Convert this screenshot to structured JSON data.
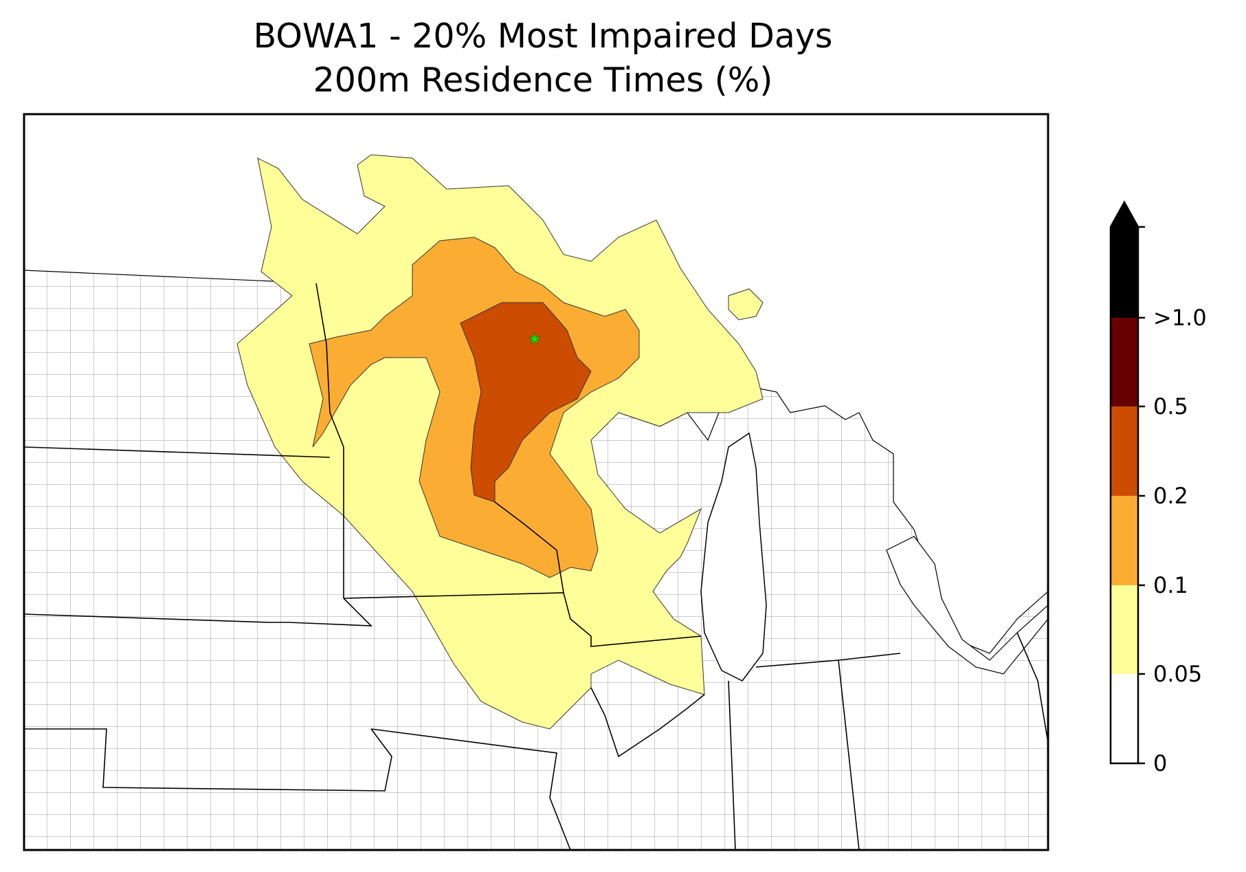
{
  "title": {
    "line1": "BOWA1 - 20% Most Impaired Days",
    "line2": "200m Residence Times (%)"
  },
  "colorbar": {
    "labels": [
      ">1.0",
      "0.5",
      "0.2",
      "0.1",
      "0.05",
      "0"
    ],
    "bins": [
      {
        "range": "0-0.05",
        "color": "#ffffff"
      },
      {
        "range": "0.05-0.1",
        "color": "#ffff99"
      },
      {
        "range": "0.1-0.2",
        "color": "#fbad33"
      },
      {
        "range": "0.2-0.5",
        "color": "#cc4c02"
      },
      {
        "range": "0.5-1.0",
        "color": "#660000"
      },
      {
        "range": ">1.0",
        "color": "#000000"
      }
    ],
    "extend": "max"
  },
  "map": {
    "region": "Upper Midwest / Great Lakes",
    "site_marker": {
      "name": "BOWA1",
      "symbol": "star",
      "color": "#00ee00"
    },
    "county_line_color": "#aaaaaa",
    "state_line_color": "#000000"
  }
}
